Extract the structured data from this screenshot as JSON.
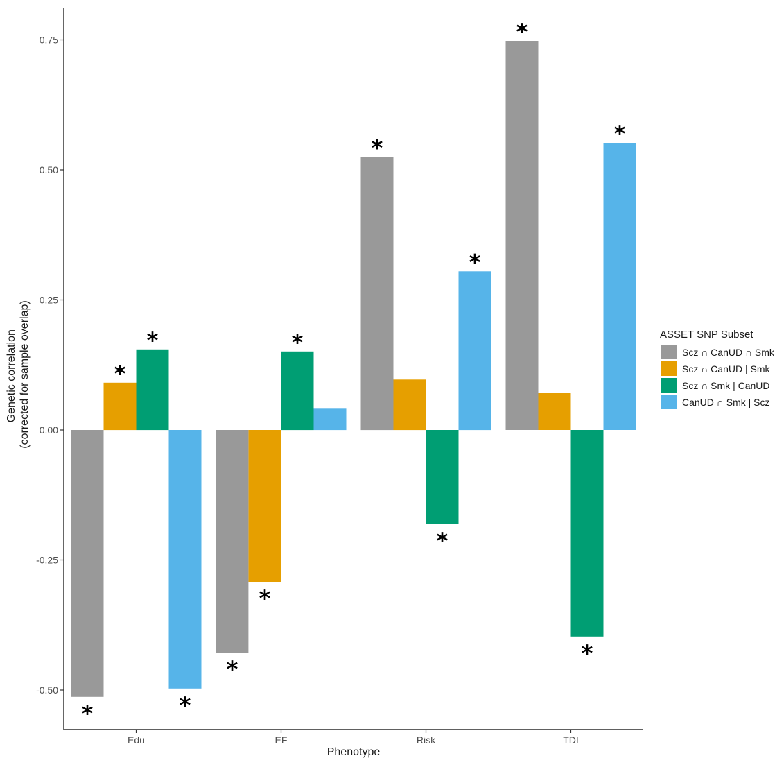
{
  "chart_data": {
    "type": "bar",
    "xlabel": "Phenotype",
    "ylabel_lines": [
      "Genetic correlation",
      "(corrected for sample overlap)"
    ],
    "categories": [
      "Edu",
      "EF",
      "Risk",
      "TDI"
    ],
    "ylim": [
      -0.55,
      0.785
    ],
    "yticks": [
      -0.5,
      -0.25,
      0.0,
      0.25,
      0.5,
      0.75
    ],
    "ytick_labels": [
      "-0.50",
      "-0.25",
      "0.00",
      "0.25",
      "0.50",
      "0.75"
    ],
    "grid": false,
    "legend": {
      "title": "ASSET SNP Subset",
      "position": "right"
    },
    "series": [
      {
        "name": "Scz ∩ CanUD ∩ Smk",
        "color": "#999999",
        "values": [
          -0.513,
          -0.428,
          0.525,
          0.748
        ],
        "significant": [
          true,
          true,
          true,
          true
        ]
      },
      {
        "name": "Scz ∩ CanUD | Smk",
        "color": "#E69F00",
        "values": [
          0.091,
          -0.292,
          0.097,
          0.072
        ],
        "significant": [
          true,
          true,
          false,
          false
        ]
      },
      {
        "name": "Scz ∩ Smk | CanUD",
        "color": "#009E73",
        "values": [
          0.155,
          0.151,
          -0.181,
          -0.397
        ],
        "significant": [
          true,
          true,
          true,
          true
        ]
      },
      {
        "name": "CanUD ∩ Smk | Scz",
        "color": "#56B4E9",
        "values": [
          -0.497,
          0.041,
          0.305,
          0.552
        ],
        "significant": [
          true,
          false,
          true,
          true
        ]
      }
    ],
    "significance_marker": "*"
  }
}
